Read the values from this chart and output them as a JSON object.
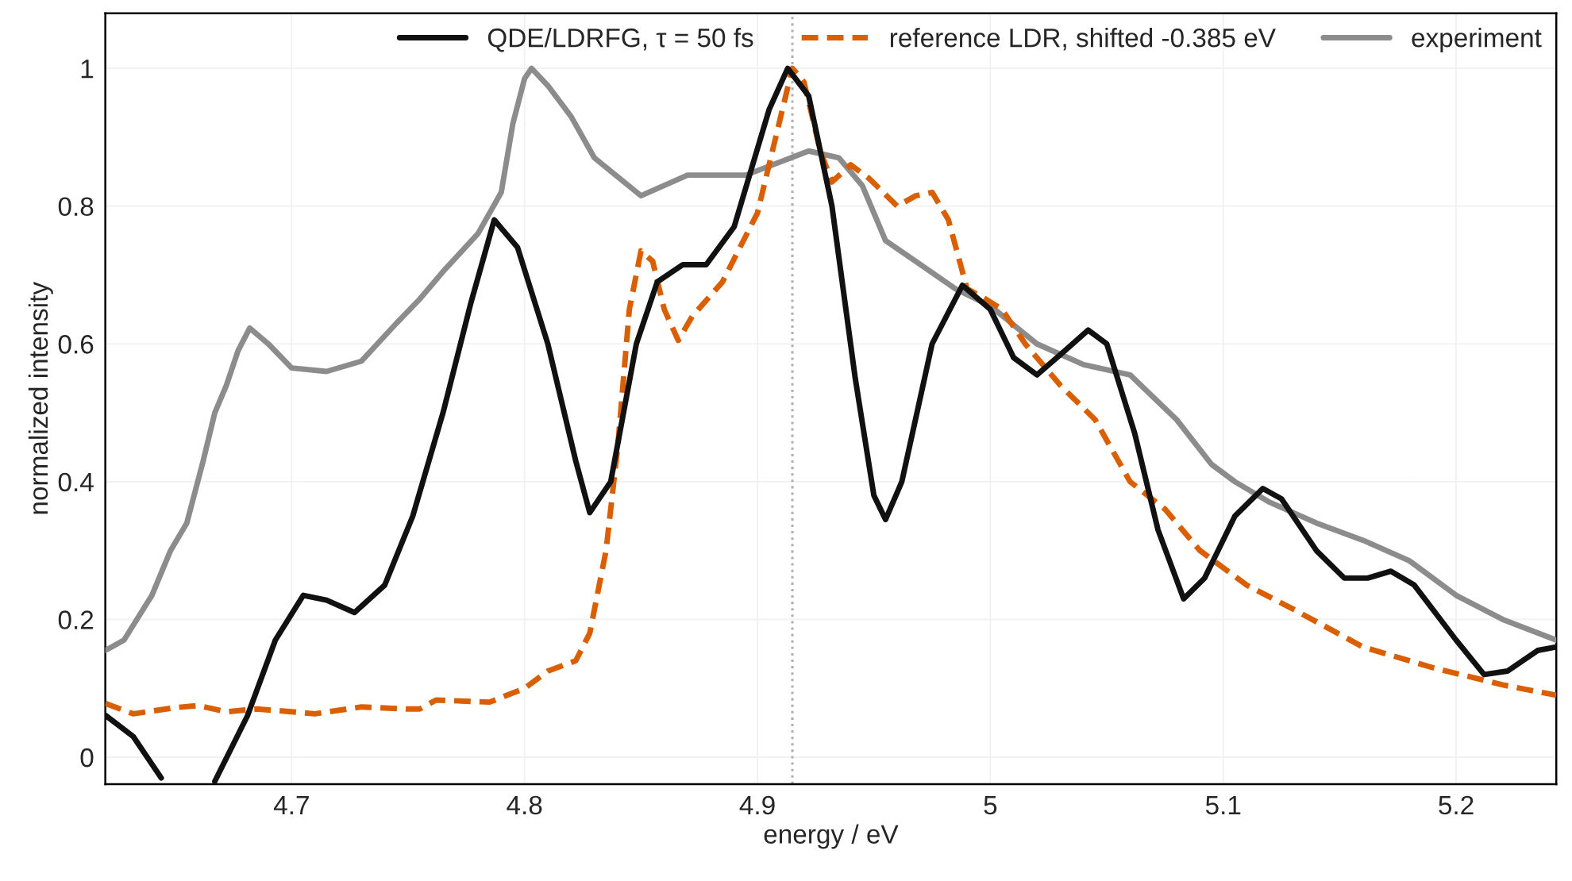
{
  "chart_data": {
    "type": "line",
    "xlabel": "energy / eV",
    "ylabel": "normalized intensity",
    "xlim": [
      4.62,
      5.243
    ],
    "ylim": [
      -0.039,
      1.08
    ],
    "xticks": [
      4.7,
      4.8,
      4.9,
      5,
      5.1,
      5.2
    ],
    "yticks": [
      0,
      0.2,
      0.4,
      0.6,
      0.8,
      1
    ],
    "grid": true,
    "legend": "top right",
    "ref_lines": [
      {
        "axis": "x",
        "value": 4.915,
        "color": "#b0b0b0",
        "line_style": "dotted"
      }
    ],
    "series": [
      {
        "name": "QDE/LDRFG, τ = 50 fs",
        "color": "#111111",
        "line_style": "solid",
        "x": [
          4.62,
          4.632,
          4.644,
          4.655,
          4.667,
          4.681,
          4.693,
          4.705,
          4.715,
          4.727,
          4.74,
          4.752,
          4.765,
          4.777,
          4.787,
          4.797,
          4.81,
          4.822,
          4.828,
          4.837,
          4.848,
          4.857,
          4.868,
          4.878,
          4.89,
          4.905,
          4.913,
          4.922,
          4.932,
          4.942,
          4.95,
          4.955,
          4.962,
          4.975,
          4.988,
          5.0,
          5.01,
          5.02,
          5.032,
          5.042,
          5.05,
          5.062,
          5.072,
          5.083,
          5.092,
          5.105,
          5.117,
          5.125,
          5.14,
          5.152,
          5.162,
          5.172,
          5.182,
          5.2,
          5.212,
          5.222,
          5.235,
          5.243
        ],
        "values": [
          0.061,
          0.03,
          -0.03,
          null,
          -0.035,
          0.06,
          0.17,
          0.235,
          0.228,
          0.21,
          0.25,
          0.35,
          0.5,
          0.66,
          0.78,
          0.74,
          0.6,
          0.43,
          0.355,
          0.4,
          0.6,
          0.69,
          0.715,
          0.715,
          0.77,
          0.94,
          1.0,
          0.96,
          0.8,
          0.55,
          0.38,
          0.345,
          0.4,
          0.6,
          0.685,
          0.65,
          0.58,
          0.555,
          0.59,
          0.62,
          0.6,
          0.47,
          0.33,
          0.23,
          0.26,
          0.35,
          0.39,
          0.375,
          0.3,
          0.26,
          0.26,
          0.27,
          0.25,
          0.17,
          0.12,
          0.125,
          0.155,
          0.16
        ]
      },
      {
        "name": "reference LDR, shifted -0.385 eV",
        "color": "#d95f02",
        "line_style": "dashed",
        "x": [
          4.62,
          4.632,
          4.65,
          4.66,
          4.672,
          4.685,
          4.7,
          4.71,
          4.73,
          4.75,
          4.755,
          4.762,
          4.785,
          4.8,
          4.81,
          4.822,
          4.828,
          4.835,
          4.84,
          4.845,
          4.85,
          4.855,
          4.86,
          4.866,
          4.872,
          4.885,
          4.9,
          4.91,
          4.915,
          4.92,
          4.927,
          4.932,
          4.94,
          4.948,
          4.96,
          4.968,
          4.975,
          4.982,
          4.99,
          4.998,
          5.005,
          5.015,
          5.03,
          5.045,
          5.06,
          5.075,
          5.09,
          5.11,
          5.13,
          5.16,
          5.19,
          5.22,
          5.243
        ],
        "values": [
          0.078,
          0.063,
          0.072,
          0.075,
          0.066,
          0.07,
          0.066,
          0.063,
          0.073,
          0.07,
          0.07,
          0.083,
          0.08,
          0.1,
          0.125,
          0.14,
          0.18,
          0.3,
          0.45,
          0.65,
          0.735,
          0.72,
          0.65,
          0.605,
          0.64,
          0.69,
          0.79,
          0.93,
          1.0,
          0.98,
          0.88,
          0.835,
          0.86,
          0.84,
          0.8,
          0.815,
          0.82,
          0.78,
          0.68,
          0.665,
          0.65,
          0.6,
          0.54,
          0.49,
          0.4,
          0.36,
          0.3,
          0.25,
          0.215,
          0.16,
          0.13,
          0.105,
          0.09
        ]
      },
      {
        "name": "experiment",
        "color": "#8c8c8c",
        "line_style": "solid",
        "x": [
          4.62,
          4.628,
          4.64,
          4.648,
          4.655,
          4.662,
          4.667,
          4.672,
          4.677,
          4.682,
          4.69,
          4.7,
          4.715,
          4.73,
          4.745,
          4.755,
          4.765,
          4.78,
          4.79,
          4.795,
          4.8,
          4.803,
          4.81,
          4.82,
          4.83,
          4.85,
          4.87,
          4.895,
          4.922,
          4.935,
          4.945,
          4.955,
          4.97,
          4.985,
          5.0,
          5.02,
          5.04,
          5.06,
          5.08,
          5.095,
          5.105,
          5.12,
          5.14,
          5.16,
          5.18,
          5.2,
          5.22,
          5.243
        ],
        "values": [
          0.155,
          0.17,
          0.235,
          0.3,
          0.34,
          0.43,
          0.5,
          0.54,
          0.59,
          0.623,
          0.6,
          0.565,
          0.56,
          0.575,
          0.63,
          0.665,
          0.705,
          0.76,
          0.82,
          0.92,
          0.985,
          1.0,
          0.975,
          0.93,
          0.87,
          0.815,
          0.845,
          0.845,
          0.88,
          0.87,
          0.83,
          0.75,
          0.715,
          0.68,
          0.655,
          0.6,
          0.57,
          0.555,
          0.49,
          0.425,
          0.4,
          0.37,
          0.34,
          0.315,
          0.285,
          0.235,
          0.2,
          0.17
        ]
      }
    ]
  }
}
